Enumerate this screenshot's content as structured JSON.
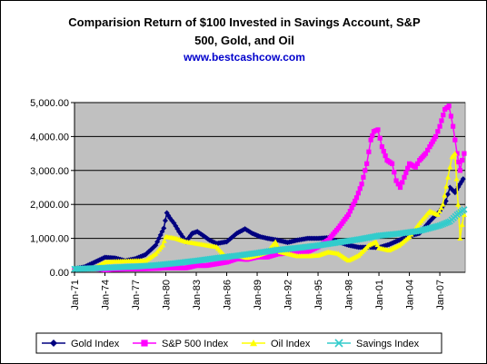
{
  "chart_data": {
    "type": "line",
    "title_line1": "Comparision Return of $100 Invested in Savings Account, S&P",
    "title_line2": "500, Gold, and Oil",
    "subtitle": "www.bestcashcow.com",
    "ylim": [
      0,
      5000
    ],
    "yticks": [
      0,
      1000,
      2000,
      3000,
      4000,
      5000
    ],
    "ytick_labels": [
      "0.00",
      "1,000.00",
      "2,000.00",
      "3,000.00",
      "4,000.00",
      "5,000.00"
    ],
    "xlim": [
      1971,
      2009.5
    ],
    "xticks": [
      1971,
      1974,
      1977,
      1980,
      1983,
      1986,
      1989,
      1992,
      1995,
      1998,
      2001,
      2004,
      2007
    ],
    "xtick_labels": [
      "Jan-71",
      "Jan-74",
      "Jan-77",
      "Jan-80",
      "Jan-83",
      "Jan-86",
      "Jan-89",
      "Jan-92",
      "Jan-95",
      "Jan-98",
      "Jan-01",
      "Jan-04",
      "Jan-07"
    ],
    "grid": true,
    "legend_position": "bottom",
    "series": [
      {
        "name": "Gold Index",
        "color": "#000080",
        "marker": "diamond",
        "points": [
          [
            1971,
            100
          ],
          [
            1972,
            160
          ],
          [
            1973,
            300
          ],
          [
            1974,
            440
          ],
          [
            1975,
            420
          ],
          [
            1976,
            340
          ],
          [
            1977,
            400
          ],
          [
            1978,
            520
          ],
          [
            1979,
            800
          ],
          [
            1979.8,
            1300
          ],
          [
            1980.1,
            1750
          ],
          [
            1980.4,
            1600
          ],
          [
            1980.8,
            1450
          ],
          [
            1981.3,
            1200
          ],
          [
            1982,
            900
          ],
          [
            1982.6,
            1150
          ],
          [
            1983.1,
            1200
          ],
          [
            1983.6,
            1100
          ],
          [
            1984.3,
            950
          ],
          [
            1985,
            850
          ],
          [
            1986,
            900
          ],
          [
            1987,
            1150
          ],
          [
            1987.8,
            1280
          ],
          [
            1988.5,
            1150
          ],
          [
            1989.3,
            1050
          ],
          [
            1990,
            1000
          ],
          [
            1991,
            950
          ],
          [
            1992,
            880
          ],
          [
            1993,
            950
          ],
          [
            1994,
            1000
          ],
          [
            1995,
            1000
          ],
          [
            1996,
            1020
          ],
          [
            1997,
            900
          ],
          [
            1998,
            800
          ],
          [
            1999,
            740
          ],
          [
            2000,
            740
          ],
          [
            2001,
            730
          ],
          [
            2002,
            820
          ],
          [
            2003,
            950
          ],
          [
            2004,
            1070
          ],
          [
            2005,
            1150
          ],
          [
            2006,
            1500
          ],
          [
            2007,
            1800
          ],
          [
            2007.6,
            2100
          ],
          [
            2008,
            2500
          ],
          [
            2008.5,
            2350
          ],
          [
            2009,
            2600
          ],
          [
            2009.3,
            2750
          ]
        ]
      },
      {
        "name": "S&P 500 Index",
        "color": "#ff00ff",
        "marker": "square",
        "points": [
          [
            1971,
            100
          ],
          [
            1973,
            110
          ],
          [
            1974,
            70
          ],
          [
            1975,
            90
          ],
          [
            1977,
            100
          ],
          [
            1979,
            110
          ],
          [
            1980,
            130
          ],
          [
            1981,
            130
          ],
          [
            1982,
            130
          ],
          [
            1983,
            200
          ],
          [
            1984,
            200
          ],
          [
            1985,
            250
          ],
          [
            1986,
            300
          ],
          [
            1987,
            400
          ],
          [
            1988,
            380
          ],
          [
            1989,
            450
          ],
          [
            1990,
            450
          ],
          [
            1991,
            540
          ],
          [
            1992,
            560
          ],
          [
            1993,
            600
          ],
          [
            1994,
            610
          ],
          [
            1995,
            750
          ],
          [
            1996,
            950
          ],
          [
            1997,
            1300
          ],
          [
            1998,
            1700
          ],
          [
            1998.8,
            2200
          ],
          [
            1999.3,
            2600
          ],
          [
            1999.8,
            3200
          ],
          [
            2000.2,
            3900
          ],
          [
            2000.5,
            4150
          ],
          [
            2000.9,
            4200
          ],
          [
            2001.3,
            3700
          ],
          [
            2001.8,
            3300
          ],
          [
            2002.3,
            3200
          ],
          [
            2002.7,
            2700
          ],
          [
            2003.1,
            2500
          ],
          [
            2003.5,
            2800
          ],
          [
            2004,
            3200
          ],
          [
            2004.6,
            3100
          ],
          [
            2005,
            3300
          ],
          [
            2005.6,
            3500
          ],
          [
            2006,
            3700
          ],
          [
            2006.6,
            4000
          ],
          [
            2007,
            4300
          ],
          [
            2007.5,
            4800
          ],
          [
            2007.9,
            4900
          ],
          [
            2008.3,
            4300
          ],
          [
            2008.7,
            3500
          ],
          [
            2009,
            3000
          ],
          [
            2009.2,
            3300
          ],
          [
            2009.4,
            3500
          ]
        ]
      },
      {
        "name": "Oil Index",
        "color": "#ffff00",
        "marker": "triangle",
        "points": [
          [
            1971,
            100
          ],
          [
            1973,
            130
          ],
          [
            1974,
            300
          ],
          [
            1975,
            320
          ],
          [
            1977,
            340
          ],
          [
            1978,
            340
          ],
          [
            1979,
            550
          ],
          [
            1979.7,
            800
          ],
          [
            1980,
            1050
          ],
          [
            1981,
            1000
          ],
          [
            1982,
            900
          ],
          [
            1983,
            850
          ],
          [
            1984,
            800
          ],
          [
            1985,
            750
          ],
          [
            1986,
            430
          ],
          [
            1987,
            500
          ],
          [
            1988,
            430
          ],
          [
            1989,
            500
          ],
          [
            1990,
            600
          ],
          [
            1990.8,
            900
          ],
          [
            1991.3,
            600
          ],
          [
            1992,
            550
          ],
          [
            1993,
            480
          ],
          [
            1994,
            480
          ],
          [
            1995,
            500
          ],
          [
            1996,
            600
          ],
          [
            1997,
            550
          ],
          [
            1998,
            350
          ],
          [
            1999,
            500
          ],
          [
            2000,
            800
          ],
          [
            2000.7,
            900
          ],
          [
            2001,
            720
          ],
          [
            2002,
            650
          ],
          [
            2003,
            800
          ],
          [
            2004,
            1050
          ],
          [
            2005,
            1450
          ],
          [
            2006,
            1800
          ],
          [
            2006.8,
            1700
          ],
          [
            2007.3,
            2000
          ],
          [
            2007.8,
            2800
          ],
          [
            2008.2,
            3400
          ],
          [
            2008.5,
            3500
          ],
          [
            2008.8,
            2000
          ],
          [
            2009,
            1000
          ],
          [
            2009.2,
            1400
          ],
          [
            2009.4,
            1700
          ]
        ]
      },
      {
        "name": "Savings Index",
        "color": "#33cccc",
        "marker": "cross",
        "points": [
          [
            1971,
            100
          ],
          [
            1973,
            120
          ],
          [
            1975,
            145
          ],
          [
            1977,
            170
          ],
          [
            1979,
            210
          ],
          [
            1981,
            270
          ],
          [
            1983,
            340
          ],
          [
            1985,
            420
          ],
          [
            1987,
            490
          ],
          [
            1989,
            570
          ],
          [
            1991,
            660
          ],
          [
            1993,
            720
          ],
          [
            1995,
            790
          ],
          [
            1997,
            880
          ],
          [
            1999,
            970
          ],
          [
            2001,
            1080
          ],
          [
            2003,
            1140
          ],
          [
            2005,
            1220
          ],
          [
            2007,
            1380
          ],
          [
            2008,
            1500
          ],
          [
            2008.7,
            1700
          ],
          [
            2009.4,
            1850
          ]
        ]
      }
    ]
  }
}
